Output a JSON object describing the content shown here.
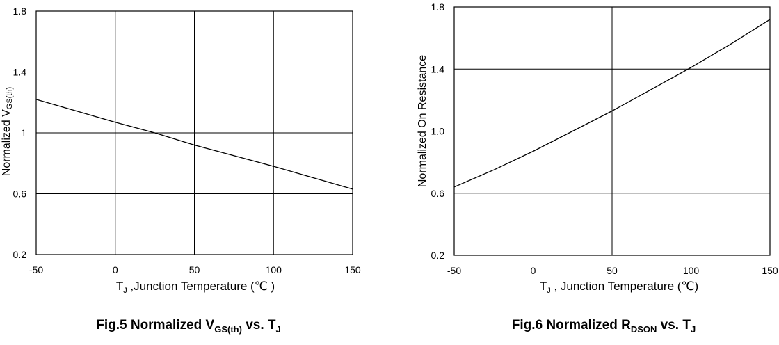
{
  "chart_data": [
    {
      "type": "line",
      "xlim": [
        -50,
        150
      ],
      "ylim": [
        0.2,
        1.8
      ],
      "x_ticks": [
        -50,
        0,
        50,
        100,
        150
      ],
      "x_tick_labels": [
        "-50",
        "0",
        "50",
        "100",
        "150"
      ],
      "y_ticks": [
        0.2,
        0.6,
        1.0,
        1.4,
        1.8
      ],
      "y_tick_labels": [
        "0.2",
        "0.6",
        "1",
        "1.4",
        "1.8"
      ],
      "grid": true,
      "xlabel_parts": [
        {
          "text": "T",
          "style": "normal"
        },
        {
          "text": "J",
          "style": "sub"
        },
        {
          "text": " ,Junction Temperature (℃ )",
          "style": "normal"
        }
      ],
      "ylabel_parts": [
        {
          "text": "Normalized V",
          "style": "normal"
        },
        {
          "text": "GS(th)",
          "style": "sub"
        }
      ],
      "caption_parts": [
        {
          "text": "Fig.5 Normalized V",
          "style": "normal"
        },
        {
          "text": "GS(th)",
          "style": "sub"
        },
        {
          "text": " vs. T",
          "style": "normal"
        },
        {
          "text": "J",
          "style": "sub"
        }
      ],
      "series": [
        {
          "x": [
            -50,
            0,
            25,
            50,
            100,
            150
          ],
          "y": [
            1.22,
            1.07,
            1.0,
            0.92,
            0.78,
            0.63
          ]
        }
      ]
    },
    {
      "type": "line",
      "xlim": [
        -50,
        150
      ],
      "ylim": [
        0.2,
        1.8
      ],
      "x_ticks": [
        -50,
        0,
        50,
        100,
        150
      ],
      "x_tick_labels": [
        "-50",
        "0",
        "50",
        "100",
        "150"
      ],
      "y_ticks": [
        0.2,
        0.6,
        1.0,
        1.4,
        1.8
      ],
      "y_tick_labels": [
        "0.2",
        "0.6",
        "1.0",
        "1.4",
        "1.8"
      ],
      "grid": true,
      "xlabel_parts": [
        {
          "text": "T",
          "style": "normal"
        },
        {
          "text": "J",
          "style": "sub"
        },
        {
          "text": " , Junction Temperature (℃)",
          "style": "normal"
        }
      ],
      "ylabel_parts": [
        {
          "text": "Normalized On Resistance",
          "style": "normal"
        }
      ],
      "caption_parts": [
        {
          "text": "Fig.6 Normalized R",
          "style": "normal"
        },
        {
          "text": "DSON",
          "style": "sub"
        },
        {
          "text": " vs. T",
          "style": "normal"
        },
        {
          "text": "J",
          "style": "sub"
        }
      ],
      "series": [
        {
          "x": [
            -50,
            -25,
            0,
            25,
            50,
            75,
            100,
            125,
            150
          ],
          "y": [
            0.64,
            0.75,
            0.87,
            1.0,
            1.13,
            1.27,
            1.41,
            1.56,
            1.72
          ]
        }
      ]
    }
  ]
}
